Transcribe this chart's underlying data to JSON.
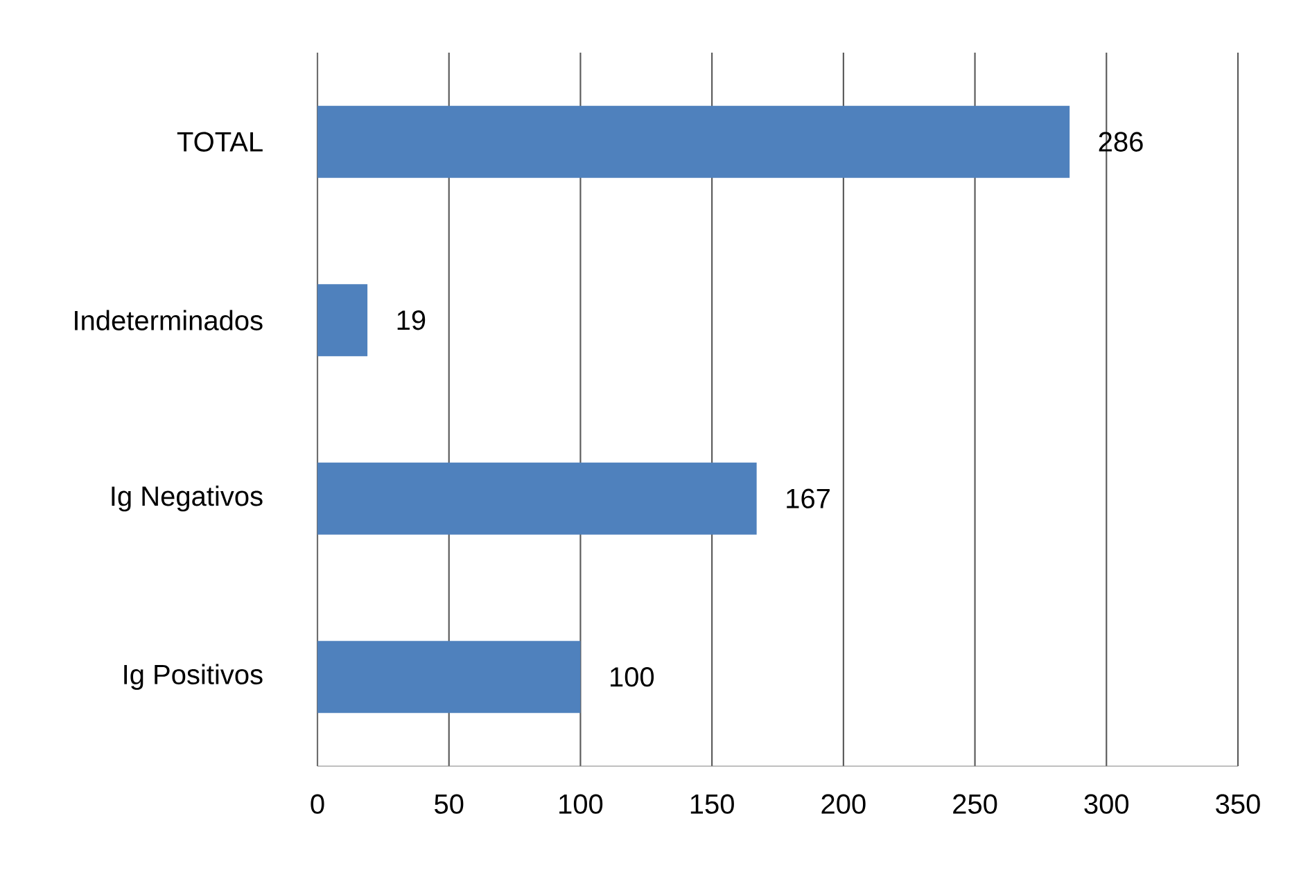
{
  "chart_data": {
    "type": "bar",
    "orientation": "horizontal",
    "categories": [
      "TOTAL",
      "Indeterminados",
      "Ig Negativos",
      "Ig Positivos"
    ],
    "values": [
      286,
      19,
      167,
      100
    ],
    "color": "#4f81bd",
    "xlim": [
      0,
      350
    ],
    "xticks": [
      0,
      50,
      100,
      150,
      200,
      250,
      300,
      350
    ],
    "grid": "x",
    "data_labels": true
  }
}
